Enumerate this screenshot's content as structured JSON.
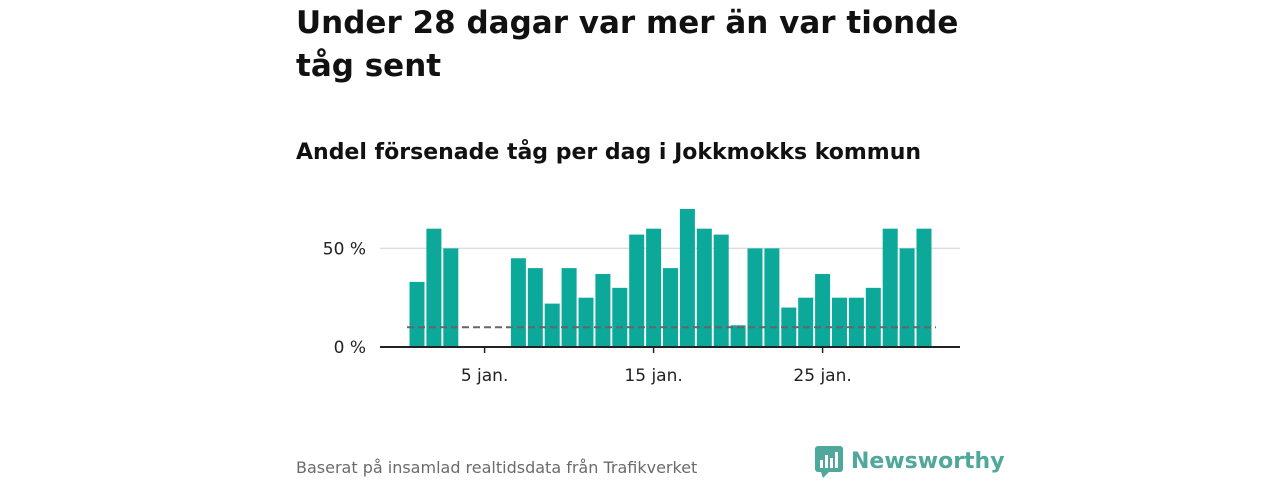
{
  "header": {
    "title": "Under 28 dagar var mer än var tionde tåg sent",
    "subtitle": "Andel försenade tåg per dag i Jokkmokks kommun"
  },
  "footer": {
    "source": "Baserat på insamlad realtidsdata från Trafikverket",
    "brand": "Newsworthy"
  },
  "colors": {
    "bar": "#0ca899",
    "reference_line": "#666666",
    "grid": "#dddddd",
    "brand": "#4fa89b"
  },
  "chart_data": {
    "type": "bar",
    "x": [
      1,
      2,
      3,
      4,
      5,
      6,
      7,
      8,
      9,
      10,
      11,
      12,
      13,
      14,
      15,
      16,
      17,
      18,
      19,
      20,
      21,
      22,
      23,
      24,
      25,
      26,
      27,
      28,
      29,
      30,
      31
    ],
    "values": [
      33,
      60,
      50,
      0,
      0,
      0,
      45,
      40,
      22,
      40,
      25,
      37,
      30,
      57,
      60,
      40,
      70,
      60,
      57,
      11,
      50,
      50,
      20,
      25,
      37,
      25,
      25,
      30,
      60,
      50,
      60
    ],
    "reference_value": 10,
    "yticks": [
      {
        "value": 0,
        "label": "0 %"
      },
      {
        "value": 50,
        "label": "50 %"
      }
    ],
    "xticks": [
      {
        "value": 5,
        "label": "5 jan."
      },
      {
        "value": 15,
        "label": "15 jan."
      },
      {
        "value": 25,
        "label": "25 jan."
      }
    ],
    "ylim": [
      0,
      72
    ],
    "grid": true,
    "title": "Andel försenade tåg per dag i Jokkmokks kommun"
  }
}
